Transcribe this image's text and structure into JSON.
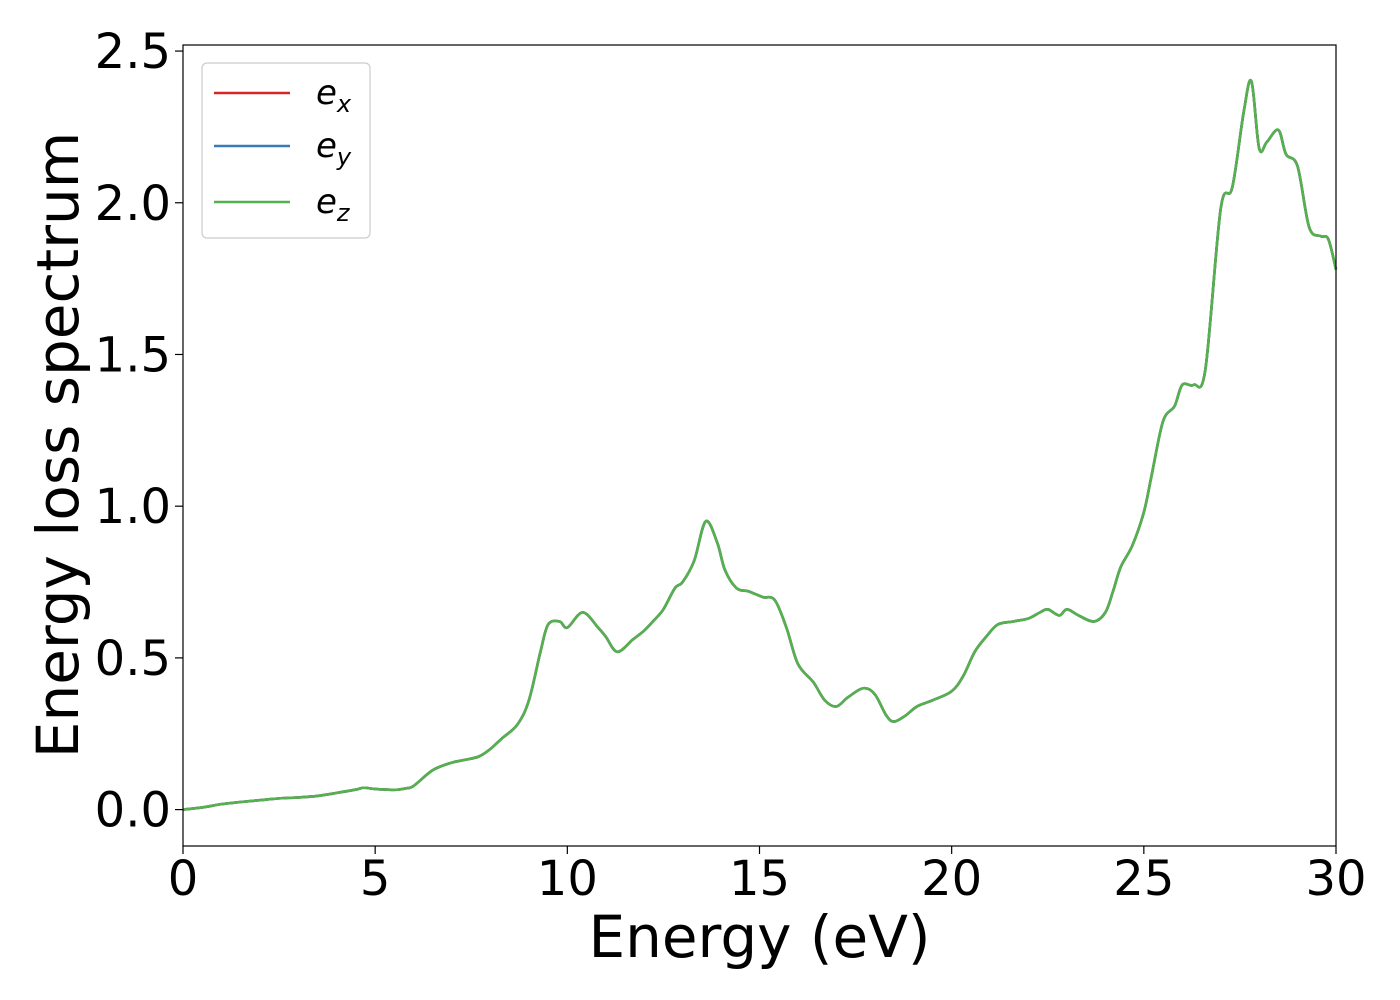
{
  "chart_data": {
    "type": "line",
    "title": "",
    "xlabel": "Energy (eV)",
    "ylabel": "Energy loss spectrum",
    "xlim": [
      0,
      30
    ],
    "ylim": [
      -0.12,
      2.52
    ],
    "xticks": [
      "0",
      "5",
      "10",
      "15",
      "20",
      "25",
      "30"
    ],
    "yticks": [
      "0.0",
      "0.5",
      "1.0",
      "1.5",
      "2.0",
      "2.5"
    ],
    "xtick_values": [
      0,
      5,
      10,
      15,
      20,
      25,
      30
    ],
    "ytick_values": [
      0.0,
      0.5,
      1.0,
      1.5,
      2.0,
      2.5
    ],
    "grid": false,
    "legend_position": "upper left",
    "colors": {
      "e_x": "#d62728",
      "e_y": "#3a7ab8",
      "e_z": "#55b04e"
    },
    "legend": [
      {
        "base": "e",
        "sub": "x"
      },
      {
        "base": "e",
        "sub": "y"
      },
      {
        "base": "e",
        "sub": "z"
      }
    ],
    "x": [
      0,
      0.5,
      1,
      1.5,
      2,
      2.5,
      3,
      3.5,
      4,
      4.5,
      4.7,
      5,
      5.5,
      5.8,
      6,
      6.5,
      7,
      7.3,
      7.7,
      8,
      8.3,
      8.7,
      9,
      9.3,
      9.5,
      9.8,
      10,
      10.4,
      10.8,
      11,
      11.3,
      11.7,
      12,
      12.3,
      12.5,
      12.8,
      13,
      13.3,
      13.6,
      13.9,
      14.1,
      14.4,
      14.7,
      14.9,
      15.1,
      15.4,
      15.7,
      16,
      16.4,
      16.7,
      17,
      17.3,
      17.7,
      18,
      18.3,
      18.5,
      18.8,
      19.1,
      19.5,
      20,
      20.3,
      20.6,
      20.9,
      21.2,
      21.6,
      22,
      22.3,
      22.5,
      22.8,
      23,
      23.3,
      23.7,
      24,
      24.2,
      24.4,
      24.7,
      25,
      25.2,
      25.5,
      25.8,
      26,
      26.3,
      26.6,
      27,
      27.3,
      27.6,
      27.8,
      28,
      28.2,
      28.5,
      28.7,
      29,
      29.3,
      29.6,
      29.8,
      30
    ],
    "series": [
      {
        "values": [
          0,
          0.007,
          0.018,
          0.025,
          0.031,
          0.037,
          0.04,
          0.045,
          0.055,
          0.066,
          0.072,
          0.068,
          0.065,
          0.07,
          0.078,
          0.13,
          0.155,
          0.163,
          0.175,
          0.2,
          0.235,
          0.28,
          0.36,
          0.52,
          0.61,
          0.62,
          0.6,
          0.65,
          0.6,
          0.57,
          0.52,
          0.56,
          0.59,
          0.63,
          0.66,
          0.73,
          0.75,
          0.82,
          0.95,
          0.88,
          0.79,
          0.73,
          0.72,
          0.71,
          0.7,
          0.69,
          0.6,
          0.48,
          0.42,
          0.36,
          0.34,
          0.37,
          0.4,
          0.38,
          0.31,
          0.29,
          0.31,
          0.34,
          0.36,
          0.39,
          0.44,
          0.52,
          0.57,
          0.61,
          0.62,
          0.63,
          0.65,
          0.66,
          0.64,
          0.66,
          0.64,
          0.62,
          0.65,
          0.72,
          0.8,
          0.87,
          0.98,
          1.1,
          1.28,
          1.33,
          1.4,
          1.4,
          1.45,
          1.98,
          2.05,
          2.3,
          2.4,
          2.18,
          2.2,
          2.24,
          2.16,
          2.12,
          1.92,
          1.89,
          1.88,
          1.78
        ]
      },
      {
        "values": [
          0,
          0.007,
          0.018,
          0.025,
          0.031,
          0.037,
          0.04,
          0.045,
          0.055,
          0.066,
          0.072,
          0.068,
          0.065,
          0.07,
          0.078,
          0.13,
          0.155,
          0.163,
          0.175,
          0.2,
          0.235,
          0.28,
          0.36,
          0.52,
          0.61,
          0.62,
          0.6,
          0.65,
          0.6,
          0.57,
          0.52,
          0.56,
          0.59,
          0.63,
          0.66,
          0.73,
          0.75,
          0.82,
          0.95,
          0.88,
          0.79,
          0.73,
          0.72,
          0.71,
          0.7,
          0.69,
          0.6,
          0.48,
          0.42,
          0.36,
          0.34,
          0.37,
          0.4,
          0.38,
          0.31,
          0.29,
          0.31,
          0.34,
          0.36,
          0.39,
          0.44,
          0.52,
          0.57,
          0.61,
          0.62,
          0.63,
          0.65,
          0.66,
          0.64,
          0.66,
          0.64,
          0.62,
          0.65,
          0.72,
          0.8,
          0.87,
          0.98,
          1.1,
          1.28,
          1.33,
          1.4,
          1.4,
          1.45,
          1.98,
          2.05,
          2.3,
          2.4,
          2.18,
          2.2,
          2.24,
          2.16,
          2.12,
          1.92,
          1.89,
          1.88,
          1.78
        ]
      },
      {
        "values": [
          0,
          0.007,
          0.018,
          0.025,
          0.031,
          0.037,
          0.04,
          0.045,
          0.055,
          0.066,
          0.072,
          0.068,
          0.065,
          0.07,
          0.078,
          0.13,
          0.155,
          0.163,
          0.175,
          0.2,
          0.235,
          0.28,
          0.36,
          0.52,
          0.61,
          0.62,
          0.6,
          0.65,
          0.6,
          0.57,
          0.52,
          0.56,
          0.59,
          0.63,
          0.66,
          0.73,
          0.75,
          0.82,
          0.95,
          0.88,
          0.79,
          0.73,
          0.72,
          0.71,
          0.7,
          0.69,
          0.6,
          0.48,
          0.42,
          0.36,
          0.34,
          0.37,
          0.4,
          0.38,
          0.31,
          0.29,
          0.31,
          0.34,
          0.36,
          0.39,
          0.44,
          0.52,
          0.57,
          0.61,
          0.62,
          0.63,
          0.65,
          0.66,
          0.64,
          0.66,
          0.64,
          0.62,
          0.65,
          0.72,
          0.8,
          0.87,
          0.98,
          1.1,
          1.28,
          1.33,
          1.4,
          1.4,
          1.45,
          1.98,
          2.05,
          2.3,
          2.4,
          2.18,
          2.2,
          2.24,
          2.16,
          2.12,
          1.92,
          1.89,
          1.88,
          1.78
        ]
      }
    ]
  }
}
